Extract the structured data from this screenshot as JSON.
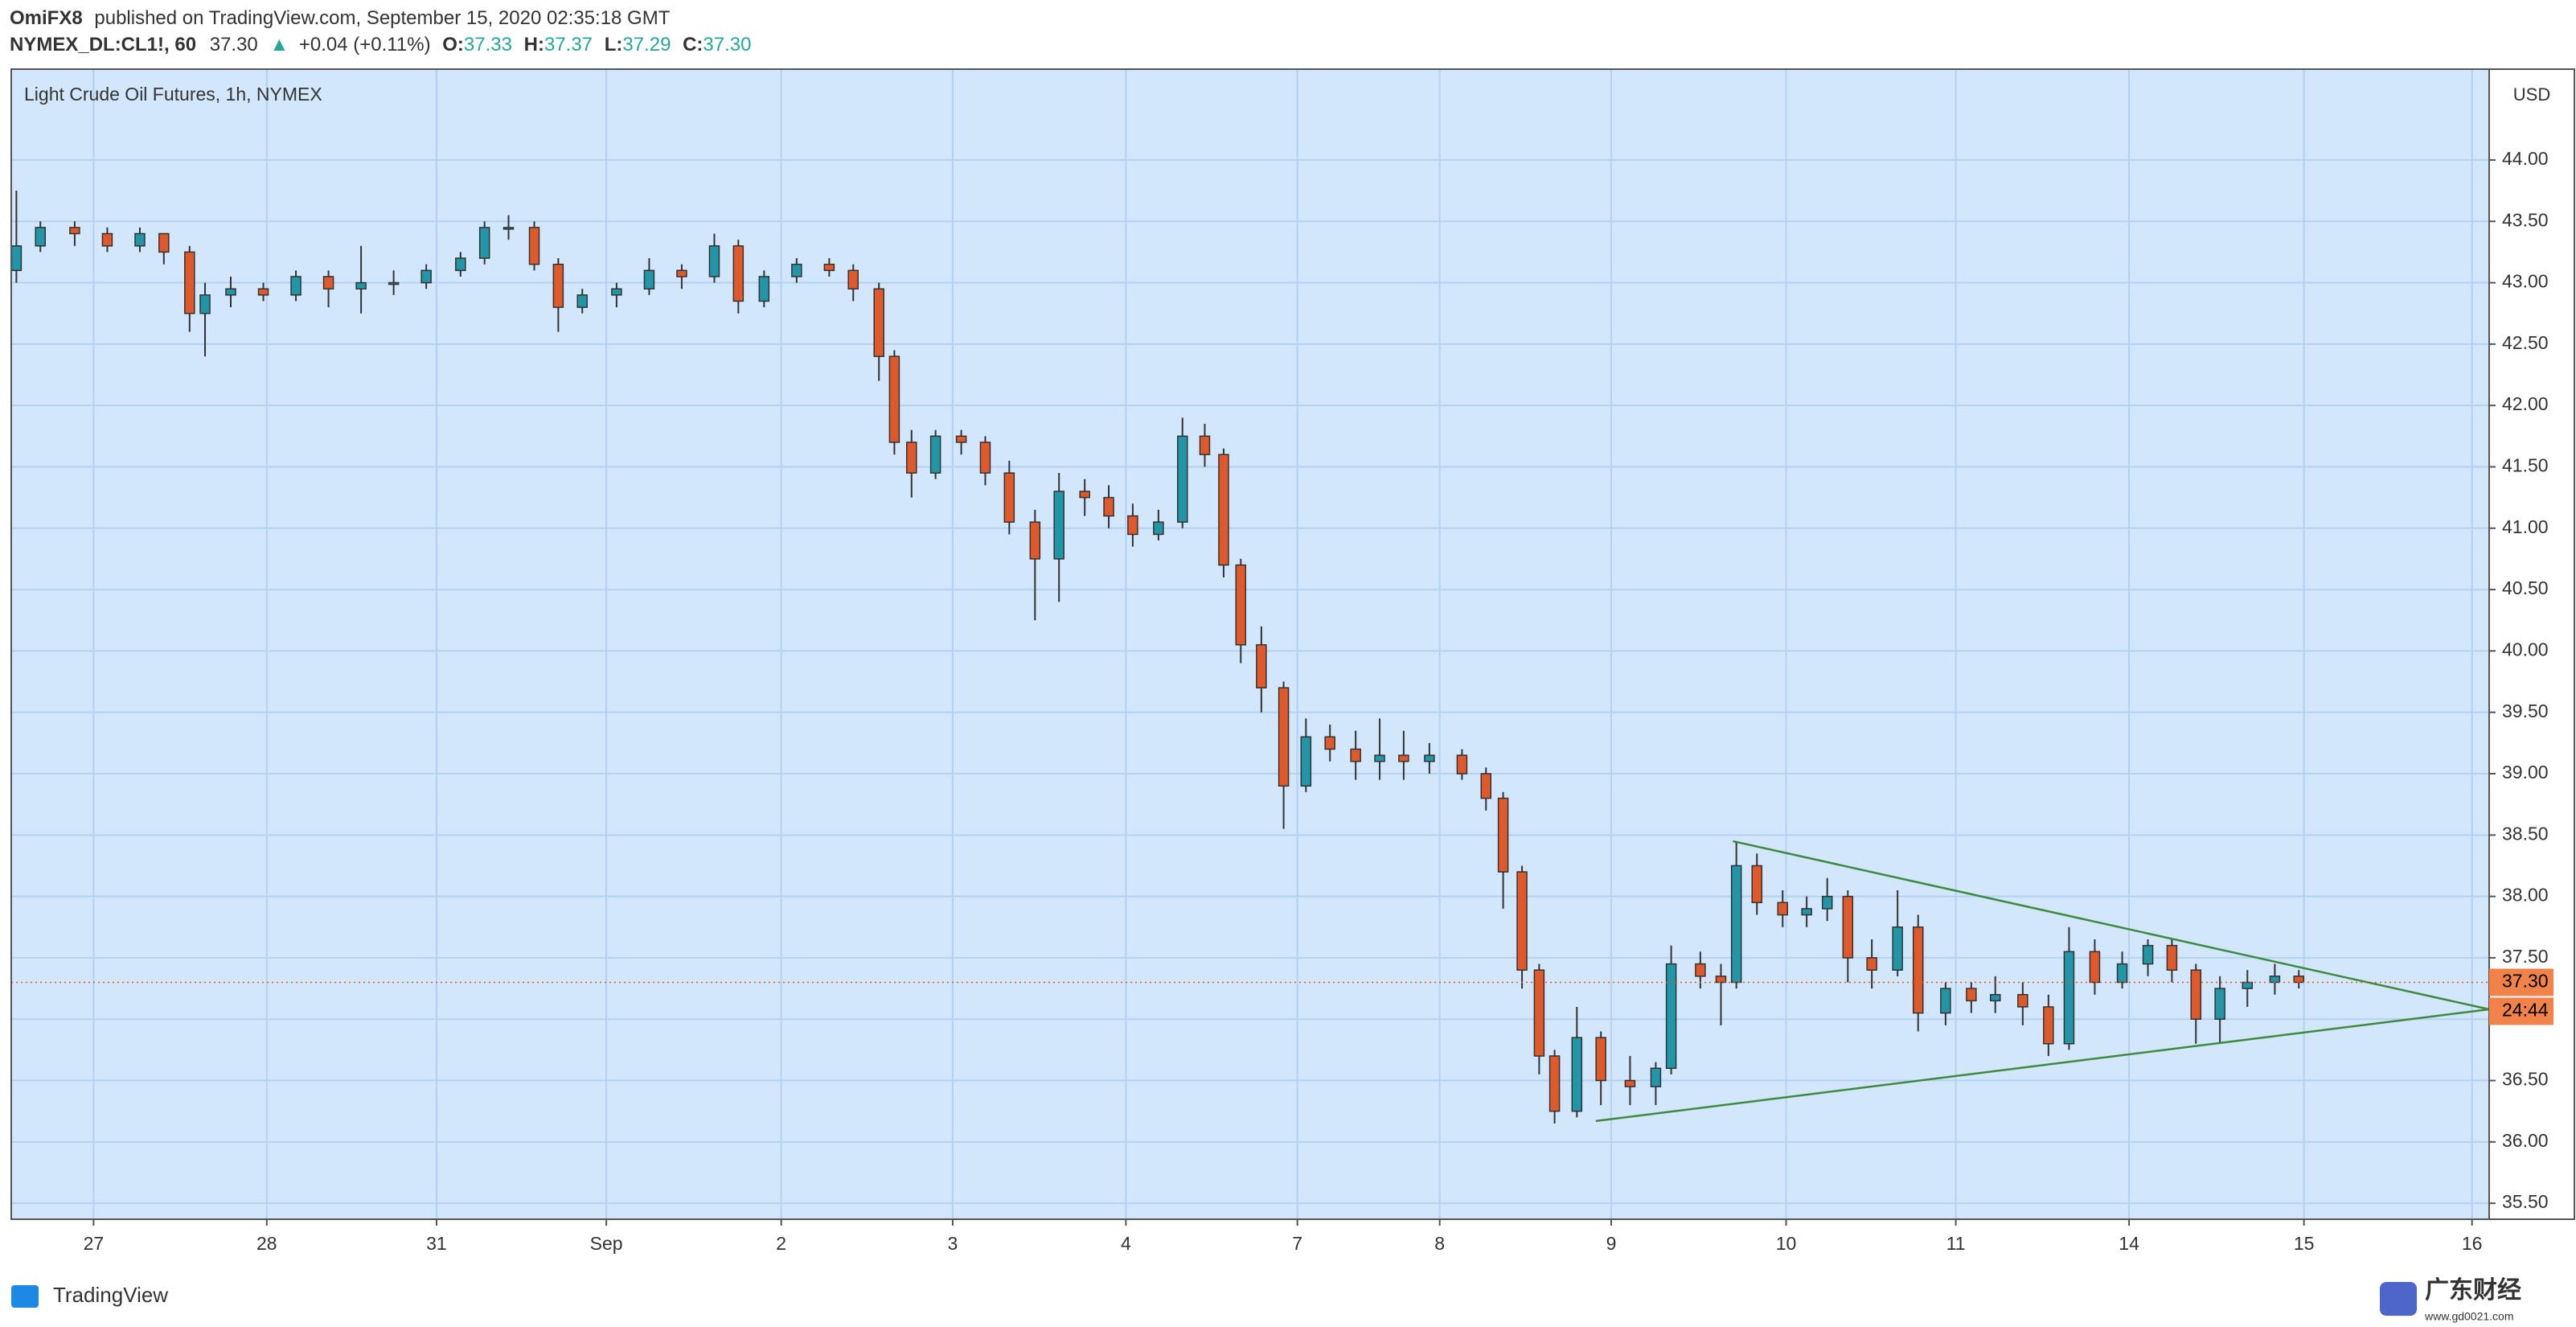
{
  "header": {
    "author": "OmiFX8",
    "published": "published on TradingView.com, September 15, 2020 02:35:18 GMT",
    "symbol": "NYMEX_DL:CL1!, 60",
    "last": "37.30",
    "arrow": "▲",
    "change": "+0.04 (+0.11%)",
    "o_label": "O:",
    "o": "37.33",
    "h_label": "H:",
    "h": "37.37",
    "l_label": "L:",
    "l": "37.29",
    "c_label": "C:",
    "c": "37.30"
  },
  "chart_data": {
    "type": "candlestick",
    "title": "Light Crude Oil Futures, 1h, NYMEX",
    "y_unit": "USD",
    "up_color": "#2196a6",
    "down_color": "#e0592a",
    "grid": true,
    "x": [
      -0.45,
      -0.31,
      -0.11,
      0.08,
      0.27,
      0.41,
      0.56,
      0.65,
      0.8,
      0.99,
      1.18,
      1.37,
      1.56,
      1.75,
      1.94,
      2.14,
      2.28,
      2.42,
      2.57,
      2.71,
      2.85,
      3.05,
      3.24,
      3.43,
      3.62,
      3.76,
      3.91,
      4.1,
      4.29,
      4.43,
      4.58,
      4.67,
      4.77,
      4.91,
      5.06,
      5.2,
      5.34,
      5.49,
      5.63,
      5.78,
      5.92,
      6.06,
      6.21,
      6.35,
      6.48,
      6.59,
      6.69,
      6.81,
      6.94,
      7.07,
      7.21,
      7.36,
      7.5,
      7.64,
      7.79,
      7.98,
      8.12,
      8.22,
      8.33,
      8.43,
      8.52,
      8.65,
      8.79,
      8.96,
      9.11,
      9.2,
      9.37,
      9.49,
      9.58,
      9.7,
      9.85,
      9.99,
      10.11,
      10.23,
      10.37,
      10.52,
      10.64,
      10.8,
      10.95,
      11.09,
      11.25,
      11.4,
      11.52,
      11.67,
      11.83,
      11.98,
      12.12,
      12.26,
      12.4,
      12.56,
      12.72,
      12.86
    ],
    "open": [
      43.1,
      43.3,
      43.45,
      43.4,
      43.3,
      43.4,
      43.25,
      42.75,
      42.9,
      42.95,
      42.9,
      43.05,
      42.95,
      43.0,
      43.0,
      43.1,
      43.2,
      43.45,
      43.45,
      43.15,
      42.8,
      42.9,
      42.95,
      43.1,
      43.05,
      43.3,
      42.85,
      43.05,
      43.15,
      43.1,
      42.95,
      42.4,
      41.7,
      41.45,
      41.75,
      41.7,
      41.45,
      41.05,
      40.75,
      41.3,
      41.25,
      41.1,
      40.95,
      41.05,
      41.75,
      41.6,
      40.7,
      40.05,
      39.7,
      38.9,
      39.3,
      39.2,
      39.1,
      39.15,
      39.1,
      39.15,
      39.0,
      38.8,
      38.2,
      37.4,
      36.7,
      36.25,
      36.85,
      36.5,
      36.45,
      36.6,
      37.45,
      37.35,
      37.3,
      38.25,
      37.95,
      37.85,
      37.9,
      38.0,
      37.5,
      37.4,
      37.75,
      37.05,
      37.25,
      37.15,
      37.2,
      37.1,
      36.8,
      37.55,
      37.3,
      37.45,
      37.6,
      37.4,
      37.0,
      37.25,
      37.3,
      37.35
    ],
    "high": [
      43.75,
      43.5,
      43.5,
      43.45,
      43.45,
      43.4,
      43.3,
      43.0,
      43.05,
      43.0,
      43.1,
      43.1,
      43.3,
      43.1,
      43.15,
      43.25,
      43.5,
      43.55,
      43.5,
      43.2,
      42.95,
      43.0,
      43.2,
      43.15,
      43.4,
      43.35,
      43.1,
      43.2,
      43.2,
      43.15,
      43.0,
      42.45,
      41.8,
      41.8,
      41.8,
      41.75,
      41.55,
      41.15,
      41.45,
      41.4,
      41.35,
      41.2,
      41.15,
      41.9,
      41.85,
      41.65,
      40.75,
      40.2,
      39.75,
      39.45,
      39.4,
      39.35,
      39.45,
      39.35,
      39.25,
      39.2,
      39.05,
      38.85,
      38.25,
      37.45,
      36.75,
      37.1,
      36.9,
      36.7,
      36.65,
      37.6,
      37.55,
      37.45,
      38.45,
      38.35,
      38.05,
      38.0,
      38.15,
      38.05,
      37.65,
      38.05,
      37.85,
      37.3,
      37.3,
      37.35,
      37.3,
      37.2,
      37.75,
      37.65,
      37.55,
      37.65,
      37.65,
      37.45,
      37.35,
      37.4,
      37.45,
      37.4
    ],
    "low": [
      43.0,
      43.25,
      43.3,
      43.25,
      43.25,
      43.15,
      42.6,
      42.4,
      42.8,
      42.85,
      42.85,
      42.8,
      42.75,
      42.9,
      42.95,
      43.05,
      43.15,
      43.35,
      43.1,
      42.6,
      42.75,
      42.8,
      42.9,
      42.95,
      43.0,
      42.75,
      42.8,
      43.0,
      43.05,
      42.85,
      42.2,
      41.6,
      41.25,
      41.4,
      41.6,
      41.35,
      40.95,
      40.25,
      40.4,
      41.1,
      41.0,
      40.85,
      40.9,
      41.0,
      41.5,
      40.6,
      39.9,
      39.5,
      38.55,
      38.85,
      39.1,
      38.95,
      38.95,
      38.95,
      39.0,
      38.95,
      38.7,
      37.9,
      37.25,
      36.55,
      36.15,
      36.2,
      36.3,
      36.3,
      36.3,
      36.55,
      37.25,
      36.95,
      37.25,
      37.85,
      37.75,
      37.75,
      37.8,
      37.3,
      37.25,
      37.35,
      36.9,
      36.95,
      37.05,
      37.05,
      36.95,
      36.7,
      36.75,
      37.2,
      37.25,
      37.35,
      37.3,
      36.8,
      36.8,
      37.1,
      37.2,
      37.25
    ],
    "close": [
      43.3,
      43.45,
      43.4,
      43.3,
      43.4,
      43.25,
      42.75,
      42.9,
      42.95,
      42.9,
      43.05,
      42.95,
      43.0,
      43.0,
      43.1,
      43.2,
      43.45,
      43.45,
      43.15,
      42.8,
      42.9,
      42.95,
      43.1,
      43.05,
      43.3,
      42.85,
      43.05,
      43.15,
      43.1,
      42.95,
      42.4,
      41.7,
      41.45,
      41.75,
      41.7,
      41.45,
      41.05,
      40.75,
      41.3,
      41.25,
      41.1,
      40.95,
      41.05,
      41.75,
      41.6,
      40.7,
      40.05,
      39.7,
      38.9,
      39.3,
      39.2,
      39.1,
      39.15,
      39.1,
      39.15,
      39.0,
      38.8,
      38.2,
      37.4,
      36.7,
      36.25,
      36.85,
      36.5,
      36.45,
      36.6,
      37.45,
      37.35,
      37.3,
      38.25,
      37.95,
      37.85,
      37.9,
      38.0,
      37.5,
      37.4,
      37.75,
      37.05,
      37.25,
      37.15,
      37.2,
      37.1,
      36.8,
      37.55,
      37.3,
      37.45,
      37.6,
      37.4,
      37.0,
      37.25,
      37.3,
      37.35,
      37.3
    ],
    "xlim": [
      -0.48,
      13.97
    ],
    "xticks": [
      {
        "value": 0,
        "label": "27"
      },
      {
        "value": 1.01,
        "label": "28"
      },
      {
        "value": 2.0,
        "label": "31"
      },
      {
        "value": 2.99,
        "label": "Sep"
      },
      {
        "value": 4.01,
        "label": "2"
      },
      {
        "value": 5.01,
        "label": "3"
      },
      {
        "value": 6.02,
        "label": "4"
      },
      {
        "value": 7.02,
        "label": "7"
      },
      {
        "value": 7.85,
        "label": "8"
      },
      {
        "value": 8.85,
        "label": "9"
      },
      {
        "value": 9.87,
        "label": "10"
      },
      {
        "value": 10.86,
        "label": "11"
      },
      {
        "value": 11.87,
        "label": "14"
      },
      {
        "value": 12.89,
        "label": "15"
      },
      {
        "value": 13.87,
        "label": "16"
      }
    ],
    "ylim": [
      35.37,
      44.74
    ],
    "yticks": [
      {
        "value": 35.5,
        "label": "35.50"
      },
      {
        "value": 36,
        "label": "36.00"
      },
      {
        "value": 36.5,
        "label": "36.50"
      },
      {
        "value": 37,
        "label": "37.00"
      },
      {
        "value": 37.5,
        "label": "37.50"
      },
      {
        "value": 38,
        "label": "38.00"
      },
      {
        "value": 38.5,
        "label": "38.50"
      },
      {
        "value": 39,
        "label": "39.00"
      },
      {
        "value": 39.5,
        "label": "39.50"
      },
      {
        "value": 40,
        "label": "40.00"
      },
      {
        "value": 40.5,
        "label": "40.50"
      },
      {
        "value": 41,
        "label": "41.00"
      },
      {
        "value": 41.5,
        "label": "41.50"
      },
      {
        "value": 42,
        "label": "42.00"
      },
      {
        "value": 42.5,
        "label": "42.50"
      },
      {
        "value": 43,
        "label": "43.00"
      },
      {
        "value": 43.5,
        "label": "43.50"
      },
      {
        "value": 44,
        "label": "44.00"
      }
    ],
    "trendlines": [
      {
        "color": "#3d8a3d",
        "x": [
          9.56,
          13.97
        ],
        "y": [
          38.45,
          37.08
        ]
      },
      {
        "color": "#3d8a3d",
        "x": [
          8.76,
          13.97
        ],
        "y": [
          36.17,
          37.08
        ]
      }
    ],
    "last_price": {
      "value": 37.3,
      "label": "37.30"
    },
    "countdown": "24:44"
  },
  "footer": {
    "brand": "TradingView",
    "watermark": "广东财经",
    "watermark_url": "www.gd0021.com"
  }
}
